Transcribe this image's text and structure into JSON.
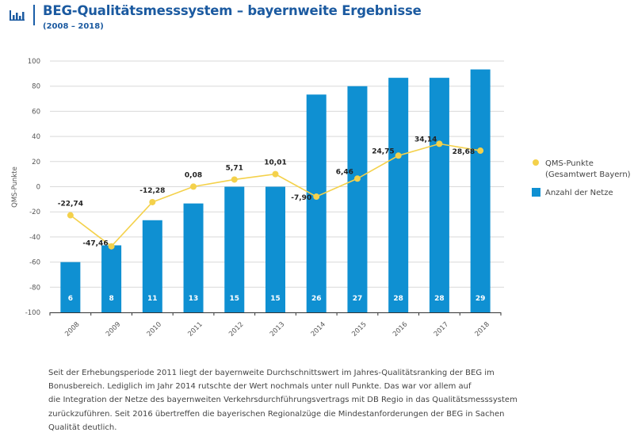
{
  "header": {
    "icon": "bar-chart-icon",
    "title": "BEG-Qualitätsmesssystem – bayernweite Ergebnisse",
    "subtitle": "(2008 – 2018)"
  },
  "colors": {
    "title": "#1b5aa0",
    "bars": "#0f90d2",
    "line": "#f4d14b",
    "grid": "#d9d9d9"
  },
  "chart_data": {
    "type": "bar+line",
    "title": "BEG-Qualitätsmesssystem – bayernweite Ergebnisse",
    "subtitle": "(2008 – 2018)",
    "xlabel": "",
    "ylabel": "QMS-Punkte",
    "ylim": [
      -100,
      100
    ],
    "yticks": [
      "100",
      "80",
      "60",
      "40",
      "20",
      "0",
      "-20",
      "-40",
      "-60",
      "-80",
      "-100"
    ],
    "ytick_values": [
      100,
      80,
      60,
      40,
      20,
      0,
      -20,
      -40,
      -60,
      -80,
      -100
    ],
    "grid": true,
    "legend_position": "right",
    "categories": [
      "2008",
      "2009",
      "2010",
      "2011",
      "2012",
      "2013",
      "2014",
      "2015",
      "2016",
      "2017",
      "2018"
    ],
    "series": [
      {
        "name": "QMS-Punkte (Gesamtwert Bayern)",
        "type": "line",
        "values": [
          -22.74,
          -47.46,
          -12.28,
          0.08,
          5.71,
          10.01,
          -7.9,
          6.46,
          24.75,
          34.14,
          28.68
        ],
        "labels": [
          "-22,74",
          "-47,46",
          "-12,28",
          "0,08",
          "5,71",
          "10,01",
          "-7,90",
          "6,46",
          "24,75",
          "34,14",
          "28,68"
        ]
      },
      {
        "name": "Anzahl der Netze",
        "type": "bar",
        "secondary_axis_range": [
          0,
          30
        ],
        "values": [
          6,
          8,
          11,
          13,
          15,
          15,
          26,
          27,
          28,
          28,
          29
        ],
        "labels": [
          "6",
          "8",
          "11",
          "13",
          "15",
          "15",
          "26",
          "27",
          "28",
          "28",
          "29"
        ]
      }
    ],
    "legend": [
      {
        "line1": "QMS-Punkte",
        "line2": "(Gesamtwert Bayern)"
      },
      {
        "line1": "Anzahl der Netze",
        "line2": ""
      }
    ]
  },
  "body_text": [
    "Seit der Erhebungsperiode 2011 liegt der bayernweite Durchschnittswert im Jahres-Qualitätsranking der BEG im",
    "Bonusbereich. Lediglich im Jahr 2014 rutschte der Wert nochmals unter null Punkte. Das war vor allem auf",
    "die Integration der Netze des bayernweiten Verkehrsdurchführungsvertrags mit DB Regio in das Qualitätsmesssystem",
    "zurückzuführen. Seit 2016 übertreffen die bayerischen Regionalzüge die Mindestanforderungen der BEG in Sachen",
    "Qualität deutlich."
  ]
}
